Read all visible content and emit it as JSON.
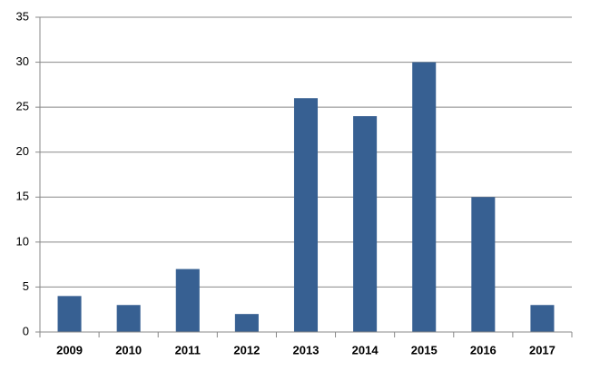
{
  "chart_data": {
    "type": "bar",
    "categories": [
      "2009",
      "2010",
      "2011",
      "2012",
      "2013",
      "2014",
      "2015",
      "2016",
      "2017"
    ],
    "values": [
      4,
      3,
      7,
      2,
      26,
      24,
      30,
      15,
      3
    ],
    "color": "#376092",
    "ylim": [
      0,
      35
    ],
    "yticks": [
      0,
      5,
      10,
      15,
      20,
      25,
      30,
      35
    ],
    "grid": true
  }
}
